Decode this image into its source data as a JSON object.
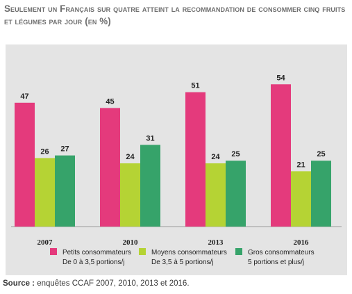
{
  "title": "Seulement un Français sur quatre atteint la recommandation de consommer cinq fruits et légumes par jour (en %)",
  "source_label": "Source :",
  "source_text": " enquêtes CCAF 2007, 2010, 2013 et 2016.",
  "chart_data": {
    "type": "bar",
    "title": "Seulement un Français sur quatre atteint la recommandation de consommer cinq fruits et légumes par jour (en %)",
    "categories": [
      "2007",
      "2010",
      "2013",
      "2016"
    ],
    "ylim": [
      0,
      60
    ],
    "grid": false,
    "legend_position": "bottom",
    "series": [
      {
        "name": "Petits consommateurs De 0 à 3,5 portions/j",
        "legend_line1": "Petits consommateurs",
        "legend_line2": "De 0 à 3,5 portions/j",
        "color": "#e43a7c",
        "values": [
          47,
          45,
          51,
          54
        ]
      },
      {
        "name": "Moyens consommateurs De 3,5 à 5 portions/j",
        "legend_line1": "Moyens consommateurs",
        "legend_line2": "De 3,5 à 5 portions/j",
        "color": "#b5d334",
        "values": [
          26,
          24,
          24,
          21
        ]
      },
      {
        "name": "Gros consommateurs 5 portions et plus/j",
        "legend_line1": "Gros consommateurs",
        "legend_line2": "5 portions et plus/j",
        "color": "#36a36a",
        "values": [
          27,
          31,
          25,
          25
        ]
      }
    ]
  }
}
